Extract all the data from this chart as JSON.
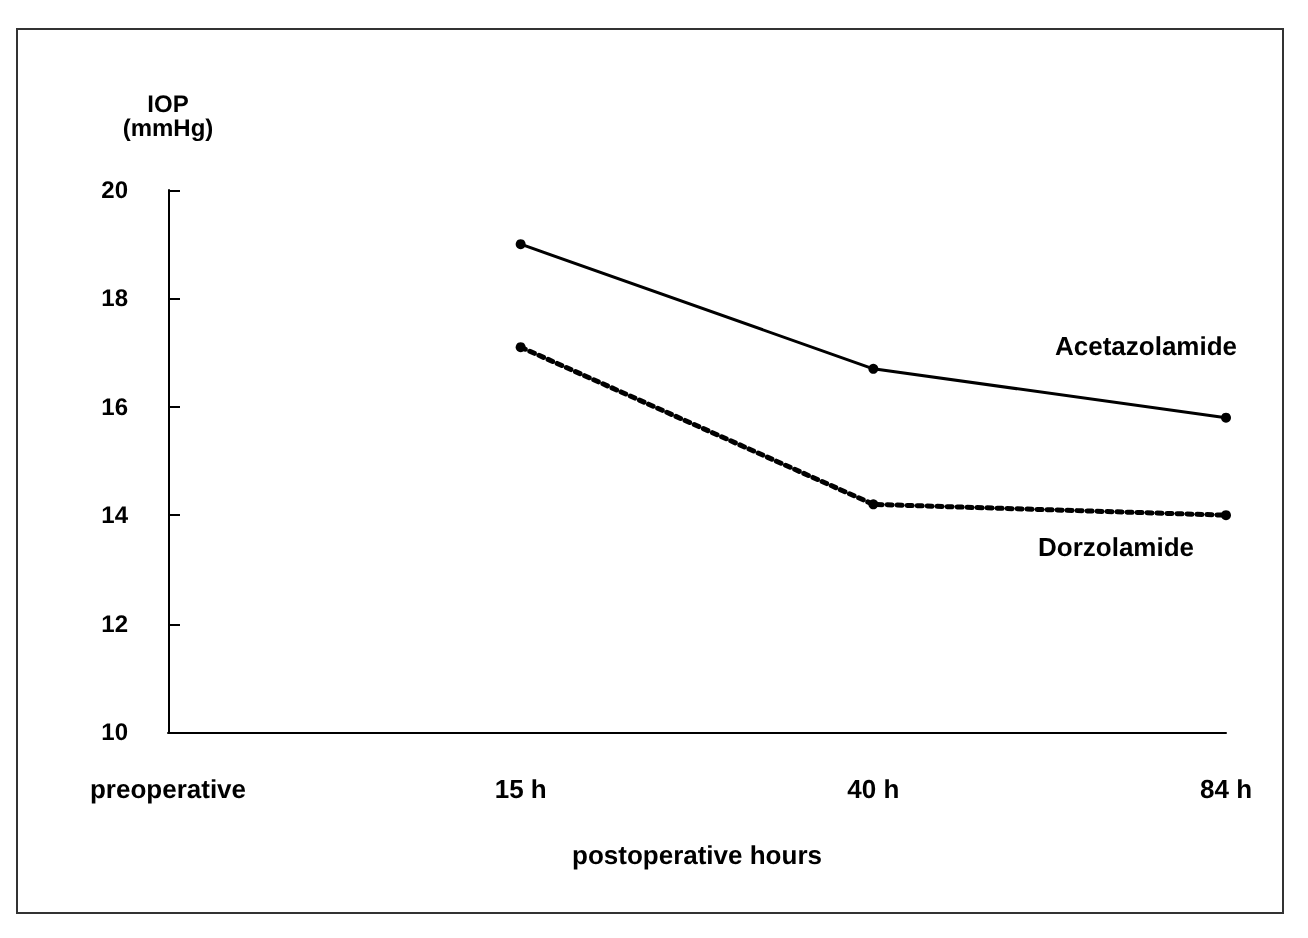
{
  "chart_data": {
    "type": "line",
    "ylabel": "IOP\n(mmHg)",
    "xlabel": "postoperative hours",
    "categories": [
      "preoperative",
      "15 h",
      "40 h",
      "84 h"
    ],
    "series": [
      {
        "name": "Acetazolamide",
        "color": "#000000",
        "values": [
          null,
          19.0,
          16.7,
          15.8
        ],
        "line_style": "solid"
      },
      {
        "name": "Dorzolamide",
        "color": "#000000",
        "values": [
          null,
          17.1,
          14.2,
          14.0
        ],
        "line_style": "dotted"
      }
    ],
    "ylim": [
      10,
      20
    ],
    "yticks": [
      10,
      12,
      14,
      16,
      18,
      20
    ],
    "grid": false,
    "legend": false,
    "marker": "circle"
  }
}
